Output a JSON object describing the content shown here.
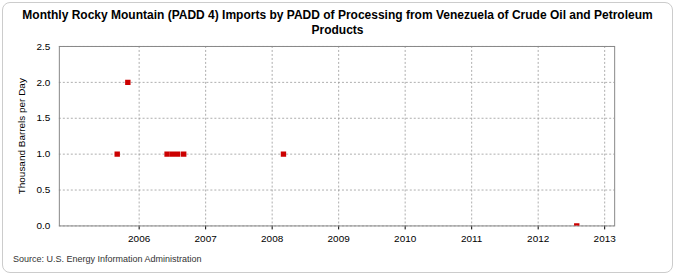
{
  "chart_data": {
    "type": "scatter",
    "title": "Monthly Rocky Mountain (PADD 4) Imports by PADD of Processing from Venezuela of Crude Oil and Petroleum Products",
    "y_label": "Thousand Barrels per Day",
    "source": "Source: U.S. Energy Information Administration",
    "x": [
      2005.67,
      2005.83,
      2006.42,
      2006.5,
      2006.58,
      2006.67,
      2008.17,
      2012.58
    ],
    "values": [
      1,
      2,
      1,
      1,
      1,
      1,
      1,
      0
    ],
    "color": "#cc0000",
    "marker": "square",
    "xlim": [
      2004.8,
      2013.15
    ],
    "xticks": [
      2006,
      2007,
      2008,
      2009,
      2010,
      2011,
      2012,
      2013
    ],
    "ylim": [
      0,
      2.5
    ],
    "yticks": [
      {
        "value": 0,
        "label": "0.0"
      },
      {
        "value": 0.5,
        "label": "0.5"
      },
      {
        "value": 1,
        "label": "1.0"
      },
      {
        "value": 1.5,
        "label": "1.5"
      },
      {
        "value": 2,
        "label": "2.0"
      },
      {
        "value": 2.5,
        "label": "2.5"
      }
    ],
    "grid": true
  }
}
